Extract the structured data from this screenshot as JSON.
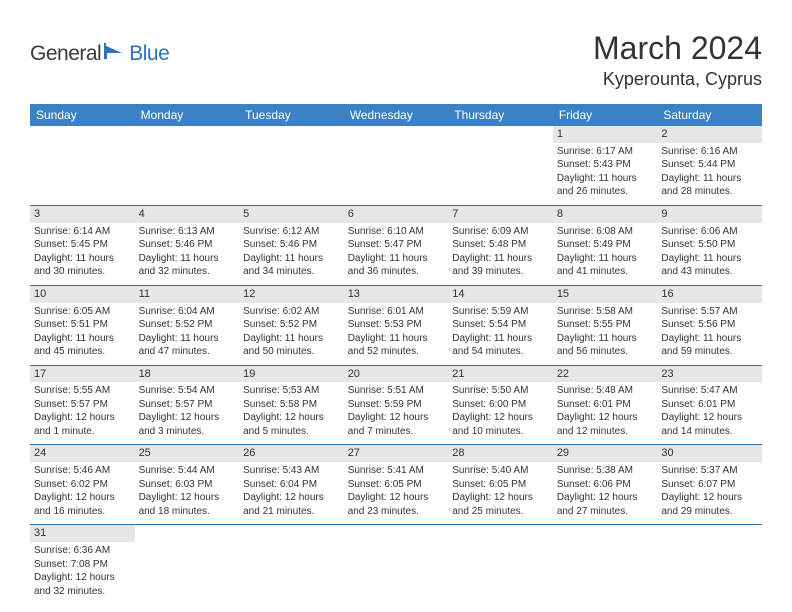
{
  "logo": {
    "part1": "General",
    "part2": "Blue"
  },
  "title": "March 2024",
  "location": "Kyperounta, Cyprus",
  "colors": {
    "header_bg": "#3b82c4",
    "header_text": "#ffffff",
    "daynum_bg": "#e6e6e6",
    "row_border": "#2e72b8",
    "logo_gray": "#3a3a3a",
    "logo_blue": "#2e72b8"
  },
  "weekdays": [
    "Sunday",
    "Monday",
    "Tuesday",
    "Wednesday",
    "Thursday",
    "Friday",
    "Saturday"
  ],
  "weeks": [
    [
      null,
      null,
      null,
      null,
      null,
      {
        "n": "1",
        "sunrise": "6:17 AM",
        "sunset": "5:43 PM",
        "daylight": "11 hours and 26 minutes."
      },
      {
        "n": "2",
        "sunrise": "6:16 AM",
        "sunset": "5:44 PM",
        "daylight": "11 hours and 28 minutes."
      }
    ],
    [
      {
        "n": "3",
        "sunrise": "6:14 AM",
        "sunset": "5:45 PM",
        "daylight": "11 hours and 30 minutes."
      },
      {
        "n": "4",
        "sunrise": "6:13 AM",
        "sunset": "5:46 PM",
        "daylight": "11 hours and 32 minutes."
      },
      {
        "n": "5",
        "sunrise": "6:12 AM",
        "sunset": "5:46 PM",
        "daylight": "11 hours and 34 minutes."
      },
      {
        "n": "6",
        "sunrise": "6:10 AM",
        "sunset": "5:47 PM",
        "daylight": "11 hours and 36 minutes."
      },
      {
        "n": "7",
        "sunrise": "6:09 AM",
        "sunset": "5:48 PM",
        "daylight": "11 hours and 39 minutes."
      },
      {
        "n": "8",
        "sunrise": "6:08 AM",
        "sunset": "5:49 PM",
        "daylight": "11 hours and 41 minutes."
      },
      {
        "n": "9",
        "sunrise": "6:06 AM",
        "sunset": "5:50 PM",
        "daylight": "11 hours and 43 minutes."
      }
    ],
    [
      {
        "n": "10",
        "sunrise": "6:05 AM",
        "sunset": "5:51 PM",
        "daylight": "11 hours and 45 minutes."
      },
      {
        "n": "11",
        "sunrise": "6:04 AM",
        "sunset": "5:52 PM",
        "daylight": "11 hours and 47 minutes."
      },
      {
        "n": "12",
        "sunrise": "6:02 AM",
        "sunset": "5:52 PM",
        "daylight": "11 hours and 50 minutes."
      },
      {
        "n": "13",
        "sunrise": "6:01 AM",
        "sunset": "5:53 PM",
        "daylight": "11 hours and 52 minutes."
      },
      {
        "n": "14",
        "sunrise": "5:59 AM",
        "sunset": "5:54 PM",
        "daylight": "11 hours and 54 minutes."
      },
      {
        "n": "15",
        "sunrise": "5:58 AM",
        "sunset": "5:55 PM",
        "daylight": "11 hours and 56 minutes."
      },
      {
        "n": "16",
        "sunrise": "5:57 AM",
        "sunset": "5:56 PM",
        "daylight": "11 hours and 59 minutes."
      }
    ],
    [
      {
        "n": "17",
        "sunrise": "5:55 AM",
        "sunset": "5:57 PM",
        "daylight": "12 hours and 1 minute."
      },
      {
        "n": "18",
        "sunrise": "5:54 AM",
        "sunset": "5:57 PM",
        "daylight": "12 hours and 3 minutes."
      },
      {
        "n": "19",
        "sunrise": "5:53 AM",
        "sunset": "5:58 PM",
        "daylight": "12 hours and 5 minutes."
      },
      {
        "n": "20",
        "sunrise": "5:51 AM",
        "sunset": "5:59 PM",
        "daylight": "12 hours and 7 minutes."
      },
      {
        "n": "21",
        "sunrise": "5:50 AM",
        "sunset": "6:00 PM",
        "daylight": "12 hours and 10 minutes."
      },
      {
        "n": "22",
        "sunrise": "5:48 AM",
        "sunset": "6:01 PM",
        "daylight": "12 hours and 12 minutes."
      },
      {
        "n": "23",
        "sunrise": "5:47 AM",
        "sunset": "6:01 PM",
        "daylight": "12 hours and 14 minutes."
      }
    ],
    [
      {
        "n": "24",
        "sunrise": "5:46 AM",
        "sunset": "6:02 PM",
        "daylight": "12 hours and 16 minutes."
      },
      {
        "n": "25",
        "sunrise": "5:44 AM",
        "sunset": "6:03 PM",
        "daylight": "12 hours and 18 minutes."
      },
      {
        "n": "26",
        "sunrise": "5:43 AM",
        "sunset": "6:04 PM",
        "daylight": "12 hours and 21 minutes."
      },
      {
        "n": "27",
        "sunrise": "5:41 AM",
        "sunset": "6:05 PM",
        "daylight": "12 hours and 23 minutes."
      },
      {
        "n": "28",
        "sunrise": "5:40 AM",
        "sunset": "6:05 PM",
        "daylight": "12 hours and 25 minutes."
      },
      {
        "n": "29",
        "sunrise": "5:38 AM",
        "sunset": "6:06 PM",
        "daylight": "12 hours and 27 minutes."
      },
      {
        "n": "30",
        "sunrise": "5:37 AM",
        "sunset": "6:07 PM",
        "daylight": "12 hours and 29 minutes."
      }
    ],
    [
      {
        "n": "31",
        "sunrise": "6:36 AM",
        "sunset": "7:08 PM",
        "daylight": "12 hours and 32 minutes."
      },
      null,
      null,
      null,
      null,
      null,
      null
    ]
  ],
  "labels": {
    "sunrise": "Sunrise:",
    "sunset": "Sunset:",
    "daylight": "Daylight:"
  }
}
